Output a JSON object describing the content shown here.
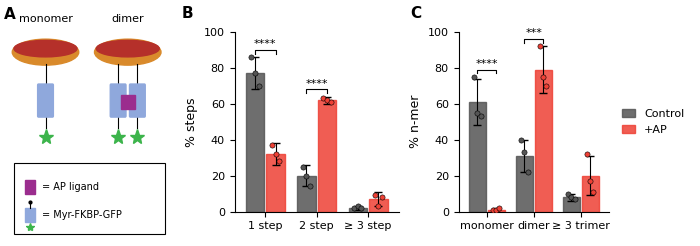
{
  "diagram": {
    "label": "A",
    "items": [
      "monomer",
      "dimer"
    ],
    "key": [
      {
        "text": "= AP ligand",
        "color": "#9b2d8e"
      },
      {
        "text": "= Myr-FKBP-GFP",
        "color": "#8fa8dc"
      }
    ]
  },
  "chart_data": [
    {
      "type": "bar",
      "title": "B",
      "y_label": "% steps",
      "categories": [
        "1 step",
        "2 step",
        "≥ 3 step"
      ],
      "series": [
        {
          "name": "Control",
          "color": "#555555",
          "values": [
            77,
            20,
            2
          ],
          "errors": [
            9,
            6,
            1
          ],
          "points": [
            [
              86,
              77,
              70
            ],
            [
              25,
              20,
              14
            ],
            [
              2,
              3,
              2
            ]
          ]
        },
        {
          "name": "+AP",
          "color": "#ee4035",
          "values": [
            32,
            62,
            7
          ],
          "errors": [
            6,
            2,
            4
          ],
          "points": [
            [
              37,
              32,
              28
            ],
            [
              63,
              62,
              61
            ],
            [
              9,
              3,
              8
            ]
          ]
        }
      ],
      "annotations": [
        {
          "category": "1 step",
          "text": "****"
        },
        {
          "category": "2 step",
          "text": "****"
        }
      ],
      "ylim": [
        0,
        100
      ],
      "yticks": [
        0,
        20,
        40,
        60,
        80,
        100
      ]
    },
    {
      "type": "bar",
      "title": "C",
      "y_label": "% n-mer",
      "categories": [
        "monomer",
        "dimer",
        "≥ 3 trimer"
      ],
      "series": [
        {
          "name": "Control",
          "color": "#555555",
          "values": [
            61,
            31,
            8
          ],
          "errors": [
            13,
            9,
            2
          ],
          "points": [
            [
              75,
              55,
              53
            ],
            [
              40,
              33,
              22
            ],
            [
              10,
              8,
              7
            ]
          ]
        },
        {
          "name": "+AP",
          "color": "#ee4035",
          "values": [
            1,
            79,
            20
          ],
          "errors": [
            1,
            13,
            11
          ],
          "points": [
            [
              1,
              1,
              2
            ],
            [
              92,
              75,
              70
            ],
            [
              32,
              17,
              11
            ]
          ]
        }
      ],
      "annotations": [
        {
          "category": "monomer",
          "text": "****"
        },
        {
          "category": "dimer",
          "text": "***"
        }
      ],
      "ylim": [
        0,
        100
      ],
      "yticks": [
        0,
        20,
        40,
        60,
        80,
        100
      ],
      "legend": "center left"
    }
  ]
}
